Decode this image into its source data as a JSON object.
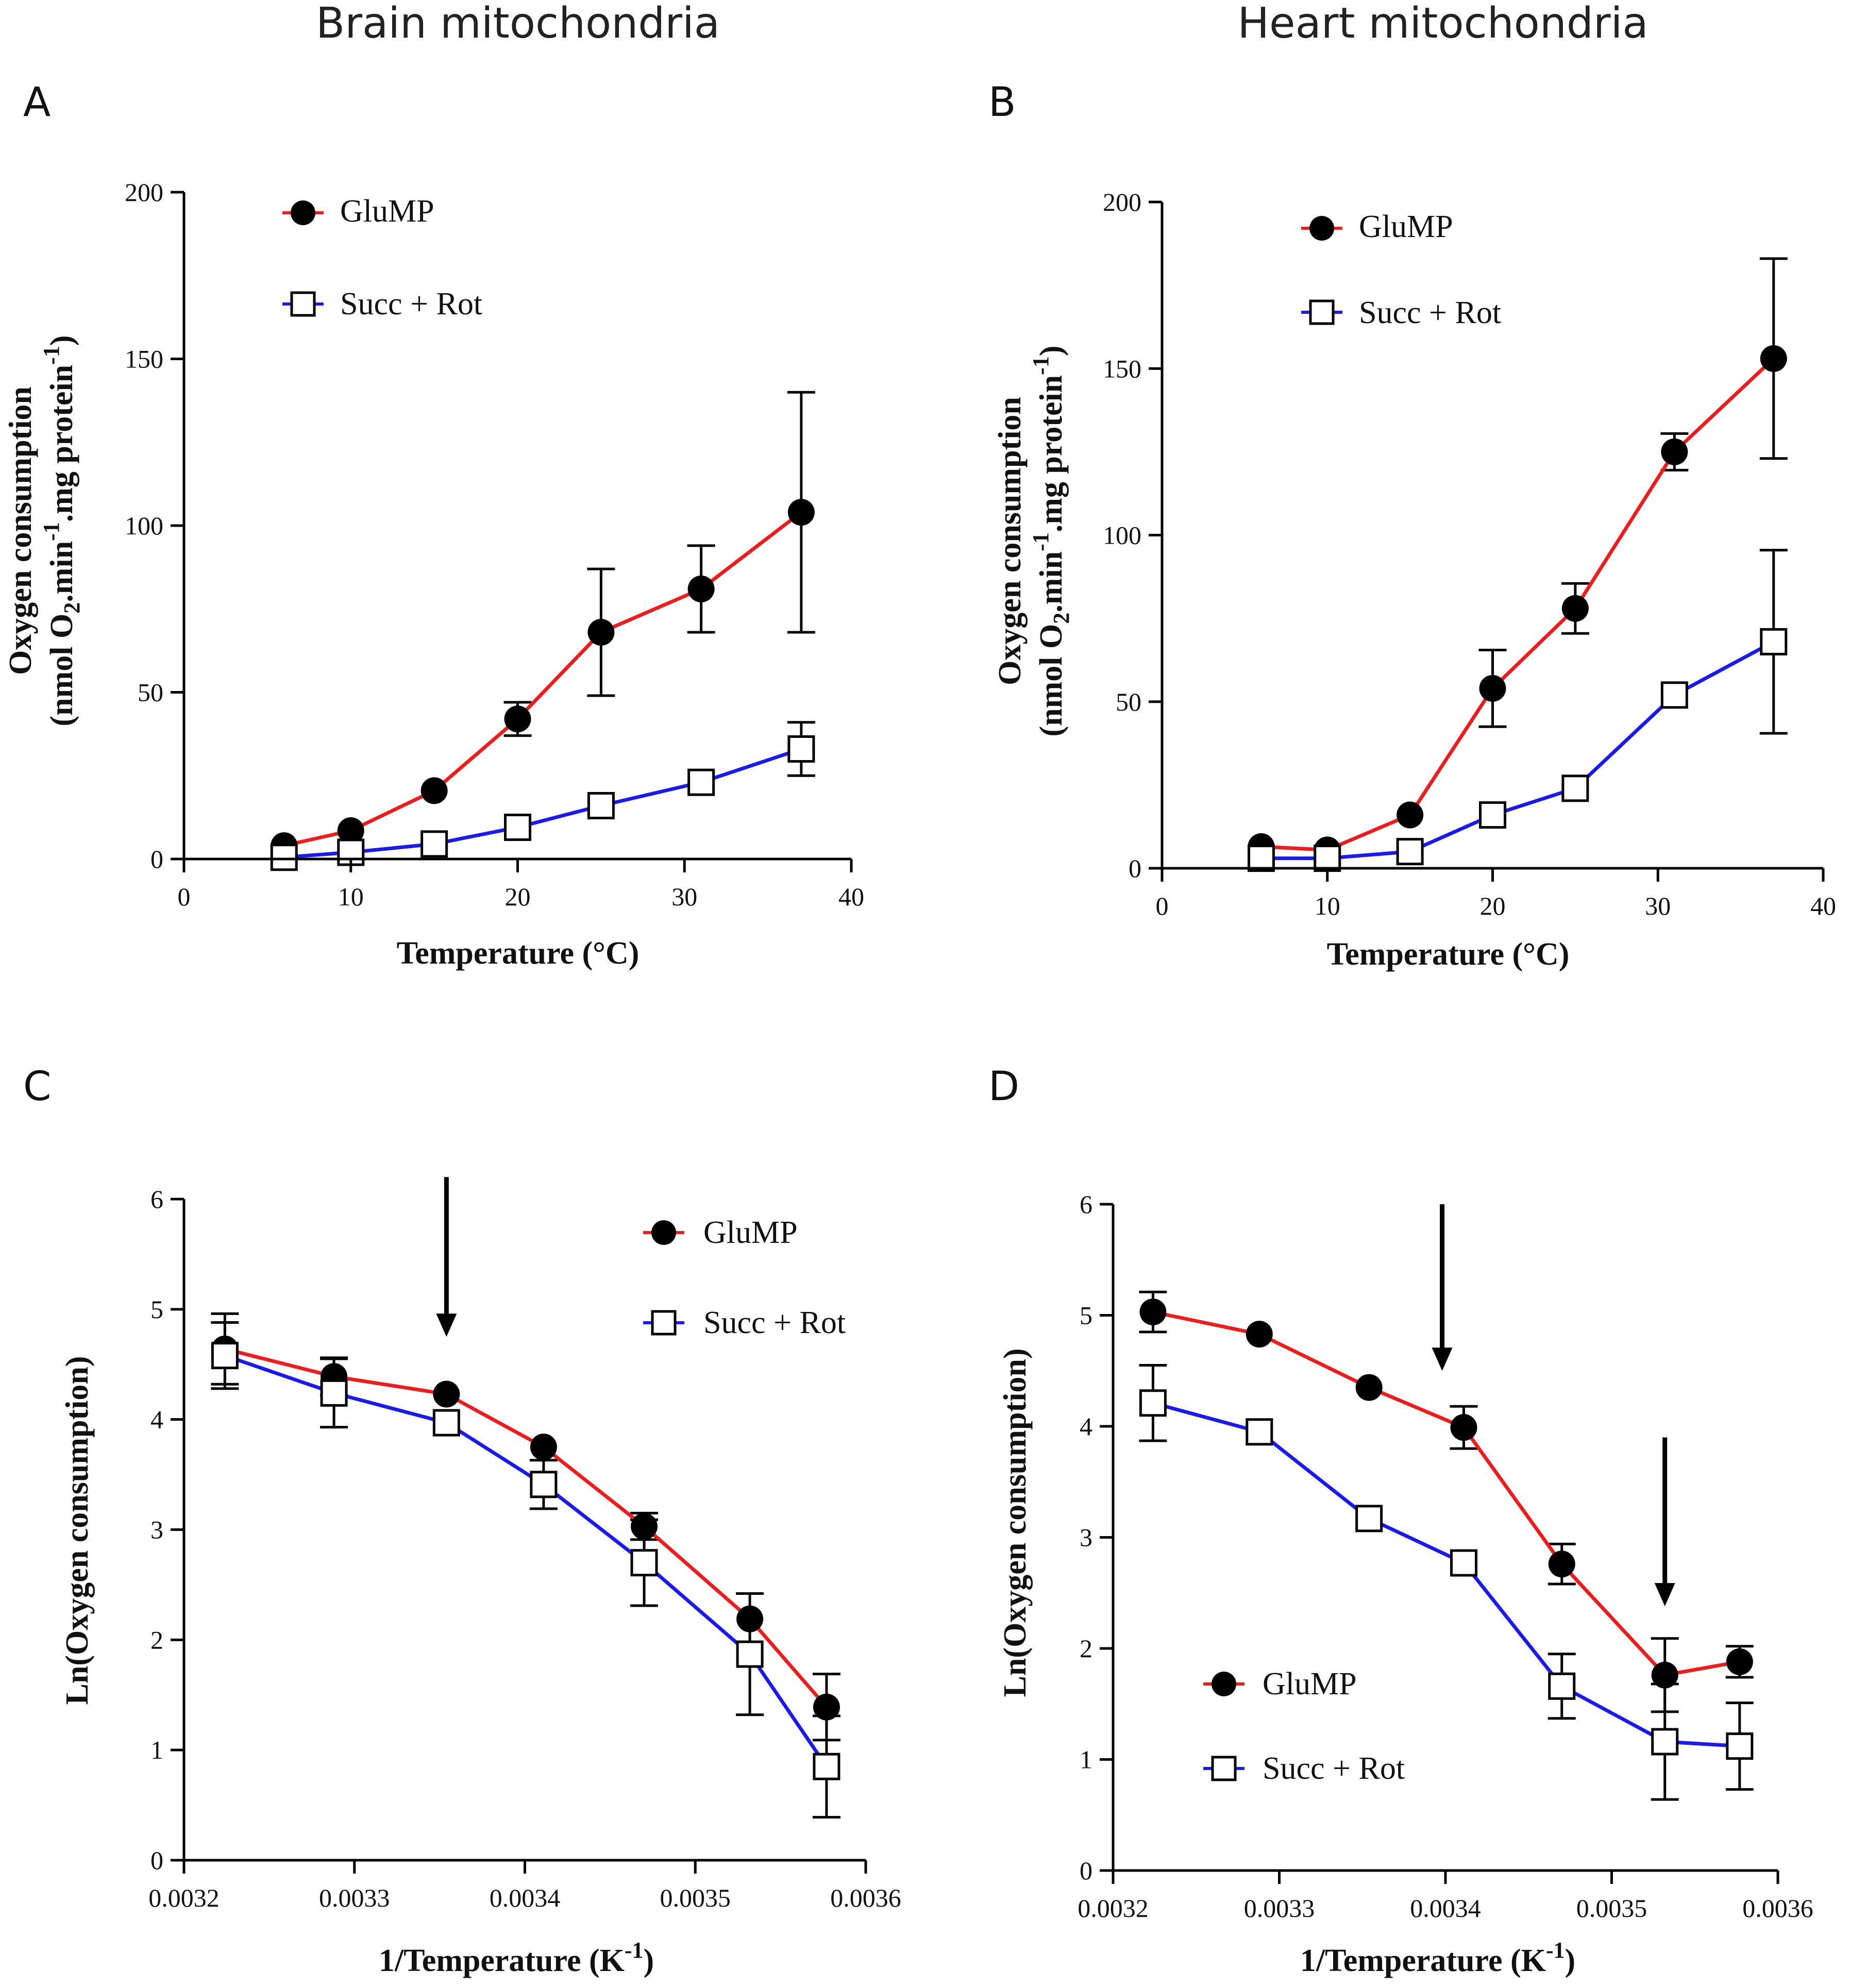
{
  "headers": {
    "left": "Brain mitochondria",
    "right": "Heart mitochondria"
  },
  "colors": {
    "glump": "#ee1c1c",
    "succ": "#1a1aee",
    "ink": "#000000"
  },
  "chart_data": [
    {
      "panel": "A",
      "type": "line",
      "title": "",
      "xlabel": "Temperature (°C)",
      "ylabel": "Oxygen consumption",
      "ylabel_2": "(nmol O",
      "ylabel_sub": "2",
      "ylabel_3": ".min",
      "ylabel_sup1": "-1",
      "ylabel_4": ".mg protein",
      "ylabel_sup2": "-1",
      "ylabel_5": ")",
      "xlim": [
        0,
        40
      ],
      "ylim": [
        0,
        200
      ],
      "xticks": [
        0,
        10,
        20,
        30,
        40
      ],
      "yticks": [
        0,
        50,
        100,
        150,
        200
      ],
      "xtick_labels": [
        "0",
        "10",
        "20",
        "30",
        "40"
      ],
      "ytick_labels": [
        "0",
        "50",
        "100",
        "150",
        "200"
      ],
      "legend": {
        "placement": "top-left"
      },
      "series": [
        {
          "name": "GluMP",
          "marker": "filled-circle",
          "color_key": "glump",
          "x": [
            6,
            10,
            15,
            20,
            25,
            31,
            37
          ],
          "y": [
            4,
            8.5,
            20.5,
            42,
            68,
            81,
            104
          ],
          "err": [
            0,
            0,
            0,
            5,
            19,
            13,
            36
          ]
        },
        {
          "name": "Succ + Rot",
          "marker": "open-square",
          "color_key": "succ",
          "x": [
            6,
            10,
            15,
            20,
            25,
            31,
            37
          ],
          "y": [
            0.5,
            2,
            4.5,
            9.5,
            16,
            23,
            33
          ],
          "err": [
            0,
            0,
            0,
            0,
            0,
            0,
            8
          ]
        }
      ],
      "arrows": []
    },
    {
      "panel": "B",
      "type": "line",
      "title": "",
      "xlabel": "Temperature (°C)",
      "ylabel": "Oxygen consumption",
      "ylabel_2": "(nmol O",
      "ylabel_sub": "2",
      "ylabel_3": ".min",
      "ylabel_sup1": "-1",
      "ylabel_4": ".mg protein",
      "ylabel_sup2": "-1",
      "ylabel_5": ")",
      "xlim": [
        0,
        40
      ],
      "ylim": [
        0,
        200
      ],
      "xticks": [
        0,
        10,
        20,
        30,
        40
      ],
      "yticks": [
        0,
        50,
        100,
        150,
        200
      ],
      "xtick_labels": [
        "0",
        "10",
        "20",
        "30",
        "40"
      ],
      "ytick_labels": [
        "0",
        "50",
        "100",
        "150",
        "200"
      ],
      "legend": {
        "placement": "top-left"
      },
      "series": [
        {
          "name": "GluMP",
          "marker": "filled-circle",
          "color_key": "glump",
          "x": [
            6,
            10,
            15,
            20,
            25,
            31,
            37
          ],
          "y": [
            6.5,
            5.5,
            16,
            54,
            78,
            125,
            153
          ],
          "err": [
            0,
            0,
            0,
            11.5,
            7.5,
            5.5,
            30
          ]
        },
        {
          "name": "Succ + Rot",
          "marker": "open-square",
          "color_key": "succ",
          "x": [
            6,
            10,
            15,
            20,
            25,
            31,
            37
          ],
          "y": [
            3,
            3,
            5,
            16,
            24,
            52,
            68
          ],
          "err": [
            0,
            0,
            0,
            0,
            0,
            0,
            27.5
          ]
        }
      ],
      "arrows": []
    },
    {
      "panel": "C",
      "type": "line",
      "title": "",
      "xlabel": "1/Temperature (K",
      "xlabel_sup": "-1",
      "xlabel_end": ")",
      "ylabel": "Ln(Oxygen consumption)",
      "xlim": [
        0.0032,
        0.0036
      ],
      "ylim": [
        0,
        6
      ],
      "xticks": [
        0.0032,
        0.0033,
        0.0034,
        0.0035,
        0.0036
      ],
      "yticks": [
        0,
        1,
        2,
        3,
        4,
        5,
        6
      ],
      "xtick_labels": [
        "0.0032",
        "0.0033",
        "0.0034",
        "0.0035",
        "0.0036"
      ],
      "ytick_labels": [
        "0",
        "1",
        "2",
        "3",
        "4",
        "5",
        "6"
      ],
      "legend": {
        "placement": "top-right"
      },
      "series": [
        {
          "name": "GluMP",
          "marker": "filled-circle",
          "color_key": "glump",
          "x": [
            0.003224,
            0.003288,
            0.003354,
            0.003411,
            0.00347,
            0.003532,
            0.003577
          ],
          "y": [
            4.64,
            4.39,
            4.23,
            3.75,
            3.03,
            2.19,
            1.39
          ],
          "err": [
            0.32,
            0.17,
            0,
            0,
            0.12,
            0,
            0.3
          ]
        },
        {
          "name": "Succ + Rot",
          "marker": "open-square",
          "color_key": "succ",
          "x": [
            0.003224,
            0.003288,
            0.003354,
            0.003411,
            0.00347,
            0.003532,
            0.003577
          ],
          "y": [
            4.58,
            4.24,
            3.97,
            3.41,
            2.7,
            1.87,
            0.85
          ],
          "err": [
            0.3,
            0.31,
            0,
            0.22,
            0.39,
            0.55,
            0.46
          ]
        }
      ],
      "arrows": [
        {
          "x": 0.003354,
          "y_top": 6.2,
          "y_tip": 4.75
        }
      ]
    },
    {
      "panel": "D",
      "type": "line",
      "title": "",
      "xlabel": "1/Temperature (K",
      "xlabel_sup": "-1",
      "xlabel_end": ")",
      "ylabel": "Ln(Oxygen consumption)",
      "xlim": [
        0.0032,
        0.0036
      ],
      "ylim": [
        0,
        6
      ],
      "xticks": [
        0.0032,
        0.0033,
        0.0034,
        0.0035,
        0.0036
      ],
      "yticks": [
        0,
        1,
        2,
        3,
        4,
        5,
        6
      ],
      "xtick_labels": [
        "0.0032",
        "0.0033",
        "0.0034",
        "0.0035",
        "0.0036"
      ],
      "ytick_labels": [
        "0",
        "1",
        "2",
        "3",
        "4",
        "5",
        "6"
      ],
      "legend": {
        "placement": "bottom-left"
      },
      "series": [
        {
          "name": "GluMP",
          "marker": "filled-circle",
          "color_key": "glump",
          "x": [
            0.003224,
            0.003288,
            0.003354,
            0.003411,
            0.00347,
            0.003532,
            0.003577
          ],
          "y": [
            5.03,
            4.83,
            4.35,
            3.99,
            2.76,
            1.76,
            1.88
          ],
          "err": [
            0.18,
            0,
            0,
            0.19,
            0.18,
            0.33,
            0.14
          ]
        },
        {
          "name": "Succ + Rot",
          "marker": "open-square",
          "color_key": "succ",
          "x": [
            0.003224,
            0.003288,
            0.003354,
            0.003411,
            0.00347,
            0.003532,
            0.003577
          ],
          "y": [
            4.21,
            3.95,
            3.17,
            2.77,
            1.66,
            1.16,
            1.12
          ],
          "err": [
            0.34,
            0,
            0,
            0,
            0.29,
            0.52,
            0.39
          ]
        }
      ],
      "arrows": [
        {
          "x": 0.003398,
          "y_top": 6.0,
          "y_tip": 4.5
        },
        {
          "x": 0.003532,
          "y_top": 3.9,
          "y_tip": 2.38
        }
      ]
    }
  ]
}
